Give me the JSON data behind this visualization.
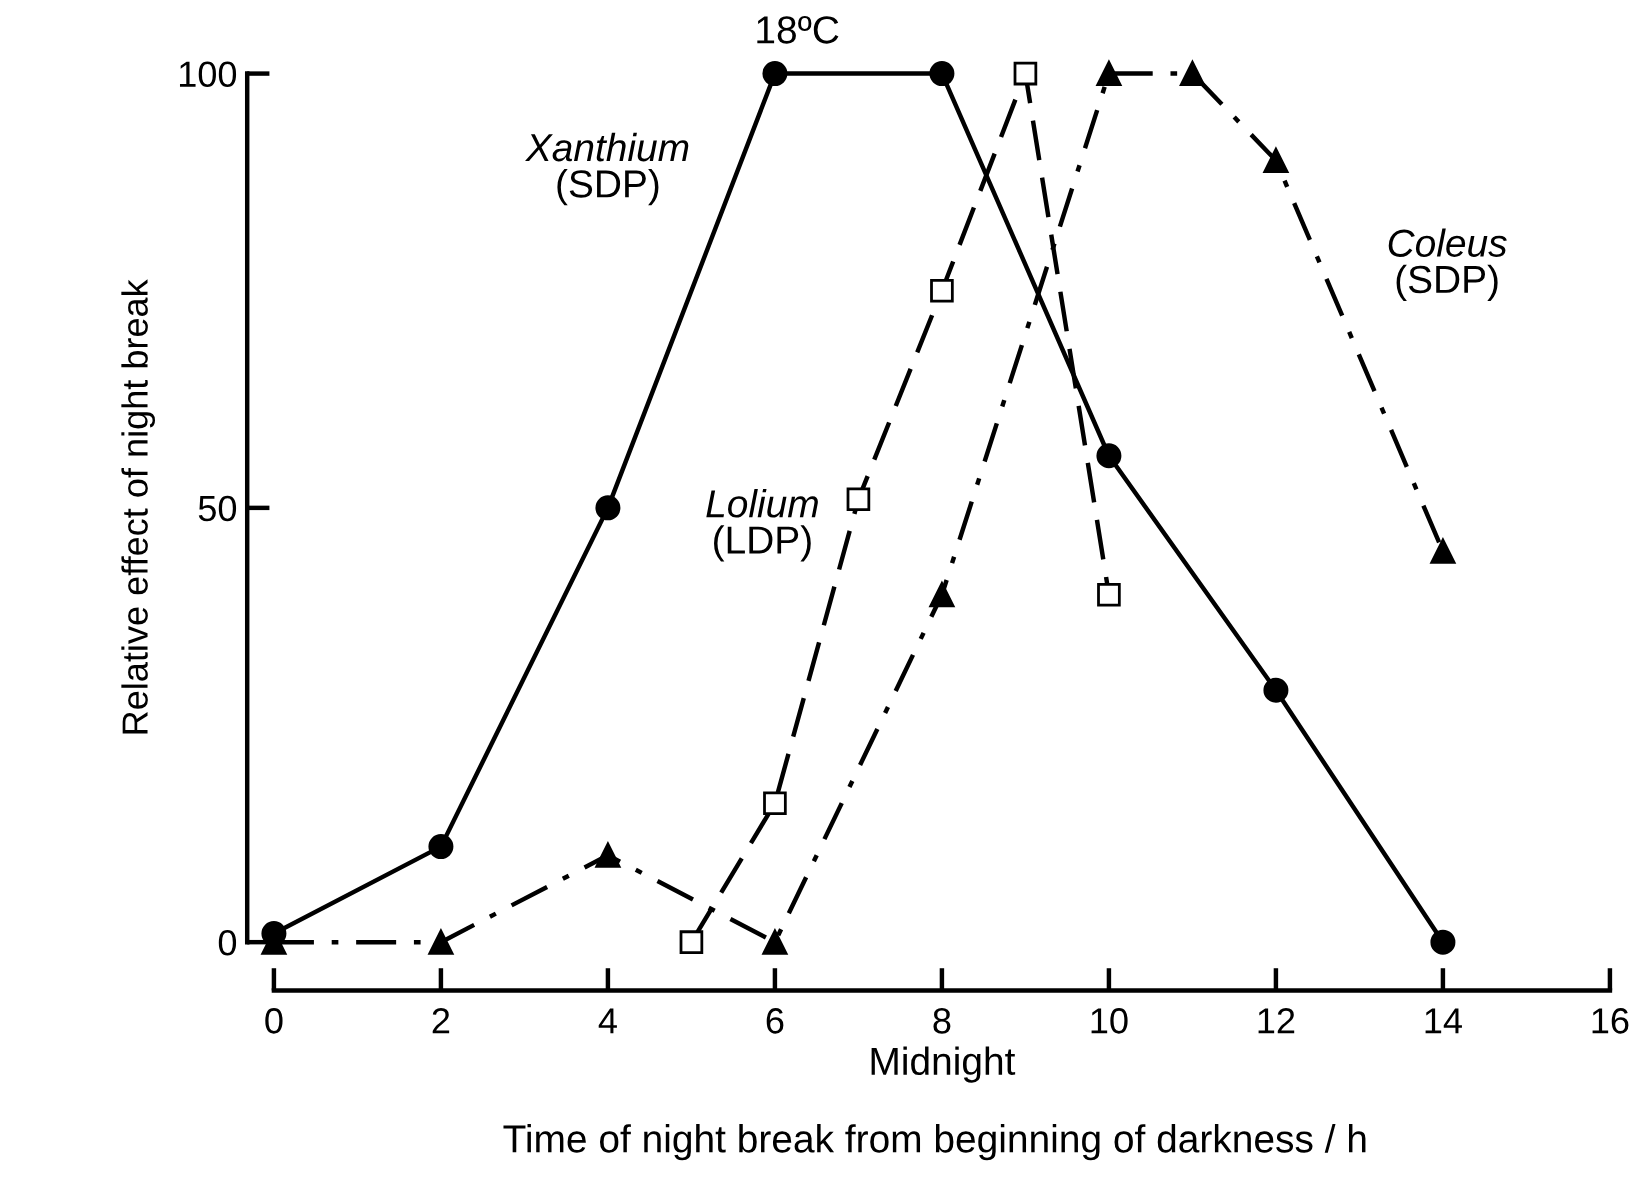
{
  "chart_data": {
    "type": "line",
    "xlabel": "Time of night break from beginning of darkness / h",
    "ylabel": "Relative effect of night break",
    "xlim": [
      0,
      16
    ],
    "xticks": [
      0,
      2,
      4,
      6,
      8,
      10,
      12,
      14,
      16
    ],
    "ylim": [
      0,
      100
    ],
    "yticks": [
      0,
      50,
      100
    ],
    "grid": false,
    "legend": false,
    "series": [
      {
        "name": "Xanthium (SDP)",
        "color": "#000000",
        "marker": "circle",
        "line_style": "solid",
        "x": [
          0,
          2,
          4,
          6,
          8,
          10,
          12,
          14
        ],
        "values": [
          1,
          11,
          50,
          100,
          100,
          56,
          29,
          0
        ]
      },
      {
        "name": "Lolium (LDP)",
        "color": "#000000",
        "marker": "square",
        "line_style": "dashed",
        "x": [
          5,
          6,
          7,
          8,
          9,
          10
        ],
        "values": [
          0,
          16,
          51,
          75,
          100,
          40
        ]
      },
      {
        "name": "Coleus (SDP)",
        "color": "#000000",
        "marker": "triangle",
        "line_style": "dashdot",
        "x": [
          0,
          2,
          4,
          6,
          8,
          10,
          11,
          12,
          14
        ],
        "values": [
          0,
          0,
          10,
          0,
          40,
          100,
          100,
          90,
          45
        ]
      }
    ],
    "annotations": [
      {
        "text": "18ºC",
        "x": 6,
        "y": 100
      },
      "Midnight"
    ]
  }
}
